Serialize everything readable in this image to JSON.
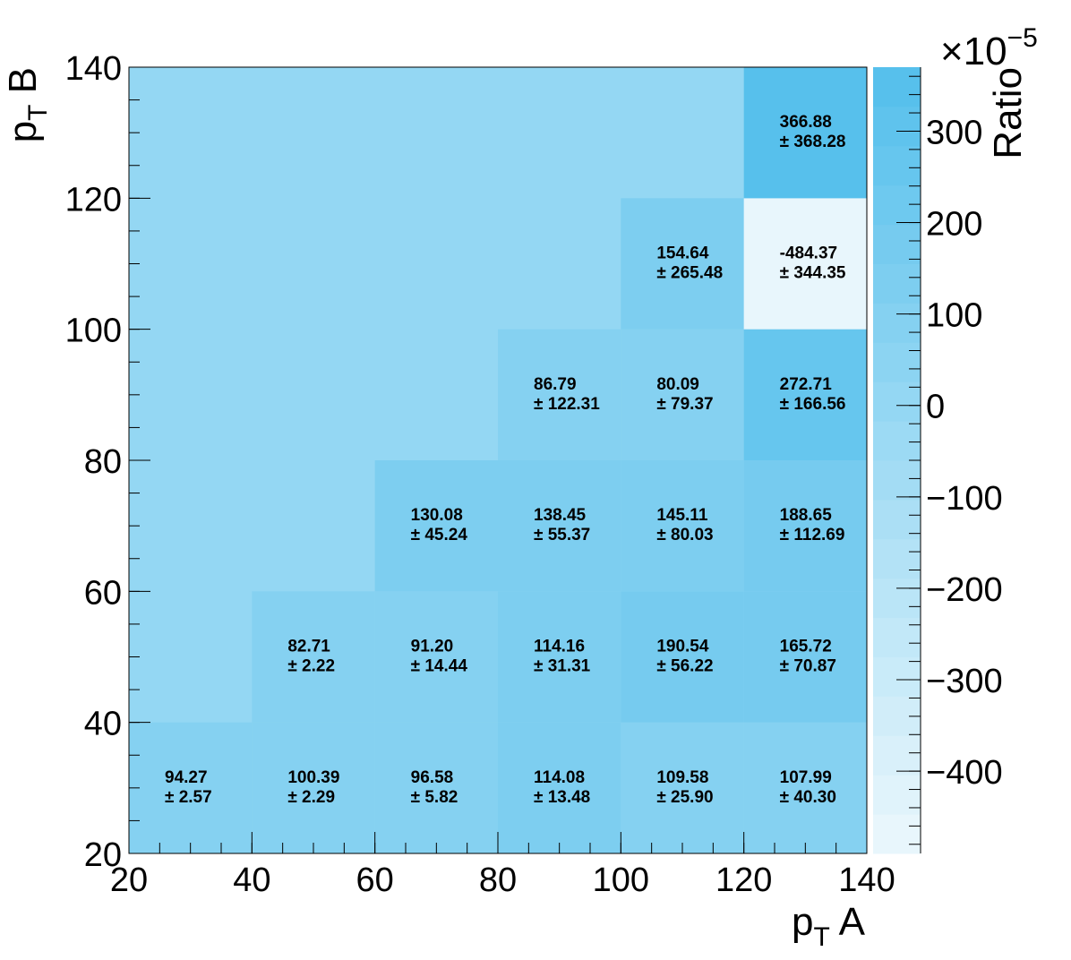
{
  "chart_data": {
    "type": "heatmap",
    "x_edges": [
      20,
      40,
      60,
      80,
      100,
      120,
      140
    ],
    "y_edges": [
      20,
      40,
      60,
      80,
      100,
      120,
      140
    ],
    "xlim": [
      20,
      140
    ],
    "ylim": [
      20,
      140
    ],
    "x_ticks": [
      "20",
      "40",
      "60",
      "80",
      "100",
      "120",
      "140"
    ],
    "y_ticks": [
      "20",
      "40",
      "60",
      "80",
      "100",
      "120",
      "140"
    ],
    "xlabel_main": "p",
    "xlabel_sub": "T",
    "xlabel_rest": " A",
    "ylabel_main": "p",
    "ylabel_sub": "T",
    "ylabel_rest": " B",
    "zlabel": "Ratio",
    "z_multiplier_base": "×10",
    "z_multiplier_exp": "−5",
    "zlim": [
      -490,
      370
    ],
    "z_ticks": [
      {
        "value": 300,
        "label": "300"
      },
      {
        "value": 200,
        "label": "200"
      },
      {
        "value": 100,
        "label": "100"
      },
      {
        "value": 0,
        "label": "0"
      },
      {
        "value": -100,
        "label": "−100"
      },
      {
        "value": -200,
        "label": "−200"
      },
      {
        "value": -300,
        "label": "−300"
      },
      {
        "value": -400,
        "label": "−400"
      }
    ],
    "background_value": 0,
    "cells": [
      {
        "x": 0,
        "y": 0,
        "value": 94.27,
        "label": "94.27",
        "error": "± 2.57"
      },
      {
        "x": 1,
        "y": 0,
        "value": 100.39,
        "label": "100.39",
        "error": "± 2.29"
      },
      {
        "x": 2,
        "y": 0,
        "value": 96.58,
        "label": "96.58",
        "error": "± 5.82"
      },
      {
        "x": 3,
        "y": 0,
        "value": 114.08,
        "label": "114.08",
        "error": "± 13.48"
      },
      {
        "x": 4,
        "y": 0,
        "value": 109.58,
        "label": "109.58",
        "error": "± 25.90"
      },
      {
        "x": 5,
        "y": 0,
        "value": 107.99,
        "label": "107.99",
        "error": "± 40.30"
      },
      {
        "x": 1,
        "y": 1,
        "value": 82.71,
        "label": "82.71",
        "error": "± 2.22"
      },
      {
        "x": 2,
        "y": 1,
        "value": 91.2,
        "label": "91.20",
        "error": "± 14.44"
      },
      {
        "x": 3,
        "y": 1,
        "value": 114.16,
        "label": "114.16",
        "error": "± 31.31"
      },
      {
        "x": 4,
        "y": 1,
        "value": 190.54,
        "label": "190.54",
        "error": "± 56.22"
      },
      {
        "x": 5,
        "y": 1,
        "value": 165.72,
        "label": "165.72",
        "error": "± 70.87"
      },
      {
        "x": 2,
        "y": 2,
        "value": 130.08,
        "label": "130.08",
        "error": "± 45.24"
      },
      {
        "x": 3,
        "y": 2,
        "value": 138.45,
        "label": "138.45",
        "error": "± 55.37"
      },
      {
        "x": 4,
        "y": 2,
        "value": 145.11,
        "label": "145.11",
        "error": "± 80.03"
      },
      {
        "x": 5,
        "y": 2,
        "value": 188.65,
        "label": "188.65",
        "error": "± 112.69"
      },
      {
        "x": 3,
        "y": 3,
        "value": 86.79,
        "label": "86.79",
        "error": "± 122.31"
      },
      {
        "x": 4,
        "y": 3,
        "value": 80.09,
        "label": "80.09",
        "error": "± 79.37"
      },
      {
        "x": 5,
        "y": 3,
        "value": 272.71,
        "label": "272.71",
        "error": "± 166.56"
      },
      {
        "x": 4,
        "y": 4,
        "value": 154.64,
        "label": "154.64",
        "error": "± 265.48"
      },
      {
        "x": 5,
        "y": 4,
        "value": -484.37,
        "label": "-484.37",
        "error": "± 344.35"
      },
      {
        "x": 5,
        "y": 5,
        "value": 366.88,
        "label": "366.88",
        "error": "± 368.28"
      }
    ],
    "colors": {
      "low": "#e8f6fc",
      "high": "#57c0ec",
      "axis": "#000000"
    }
  }
}
